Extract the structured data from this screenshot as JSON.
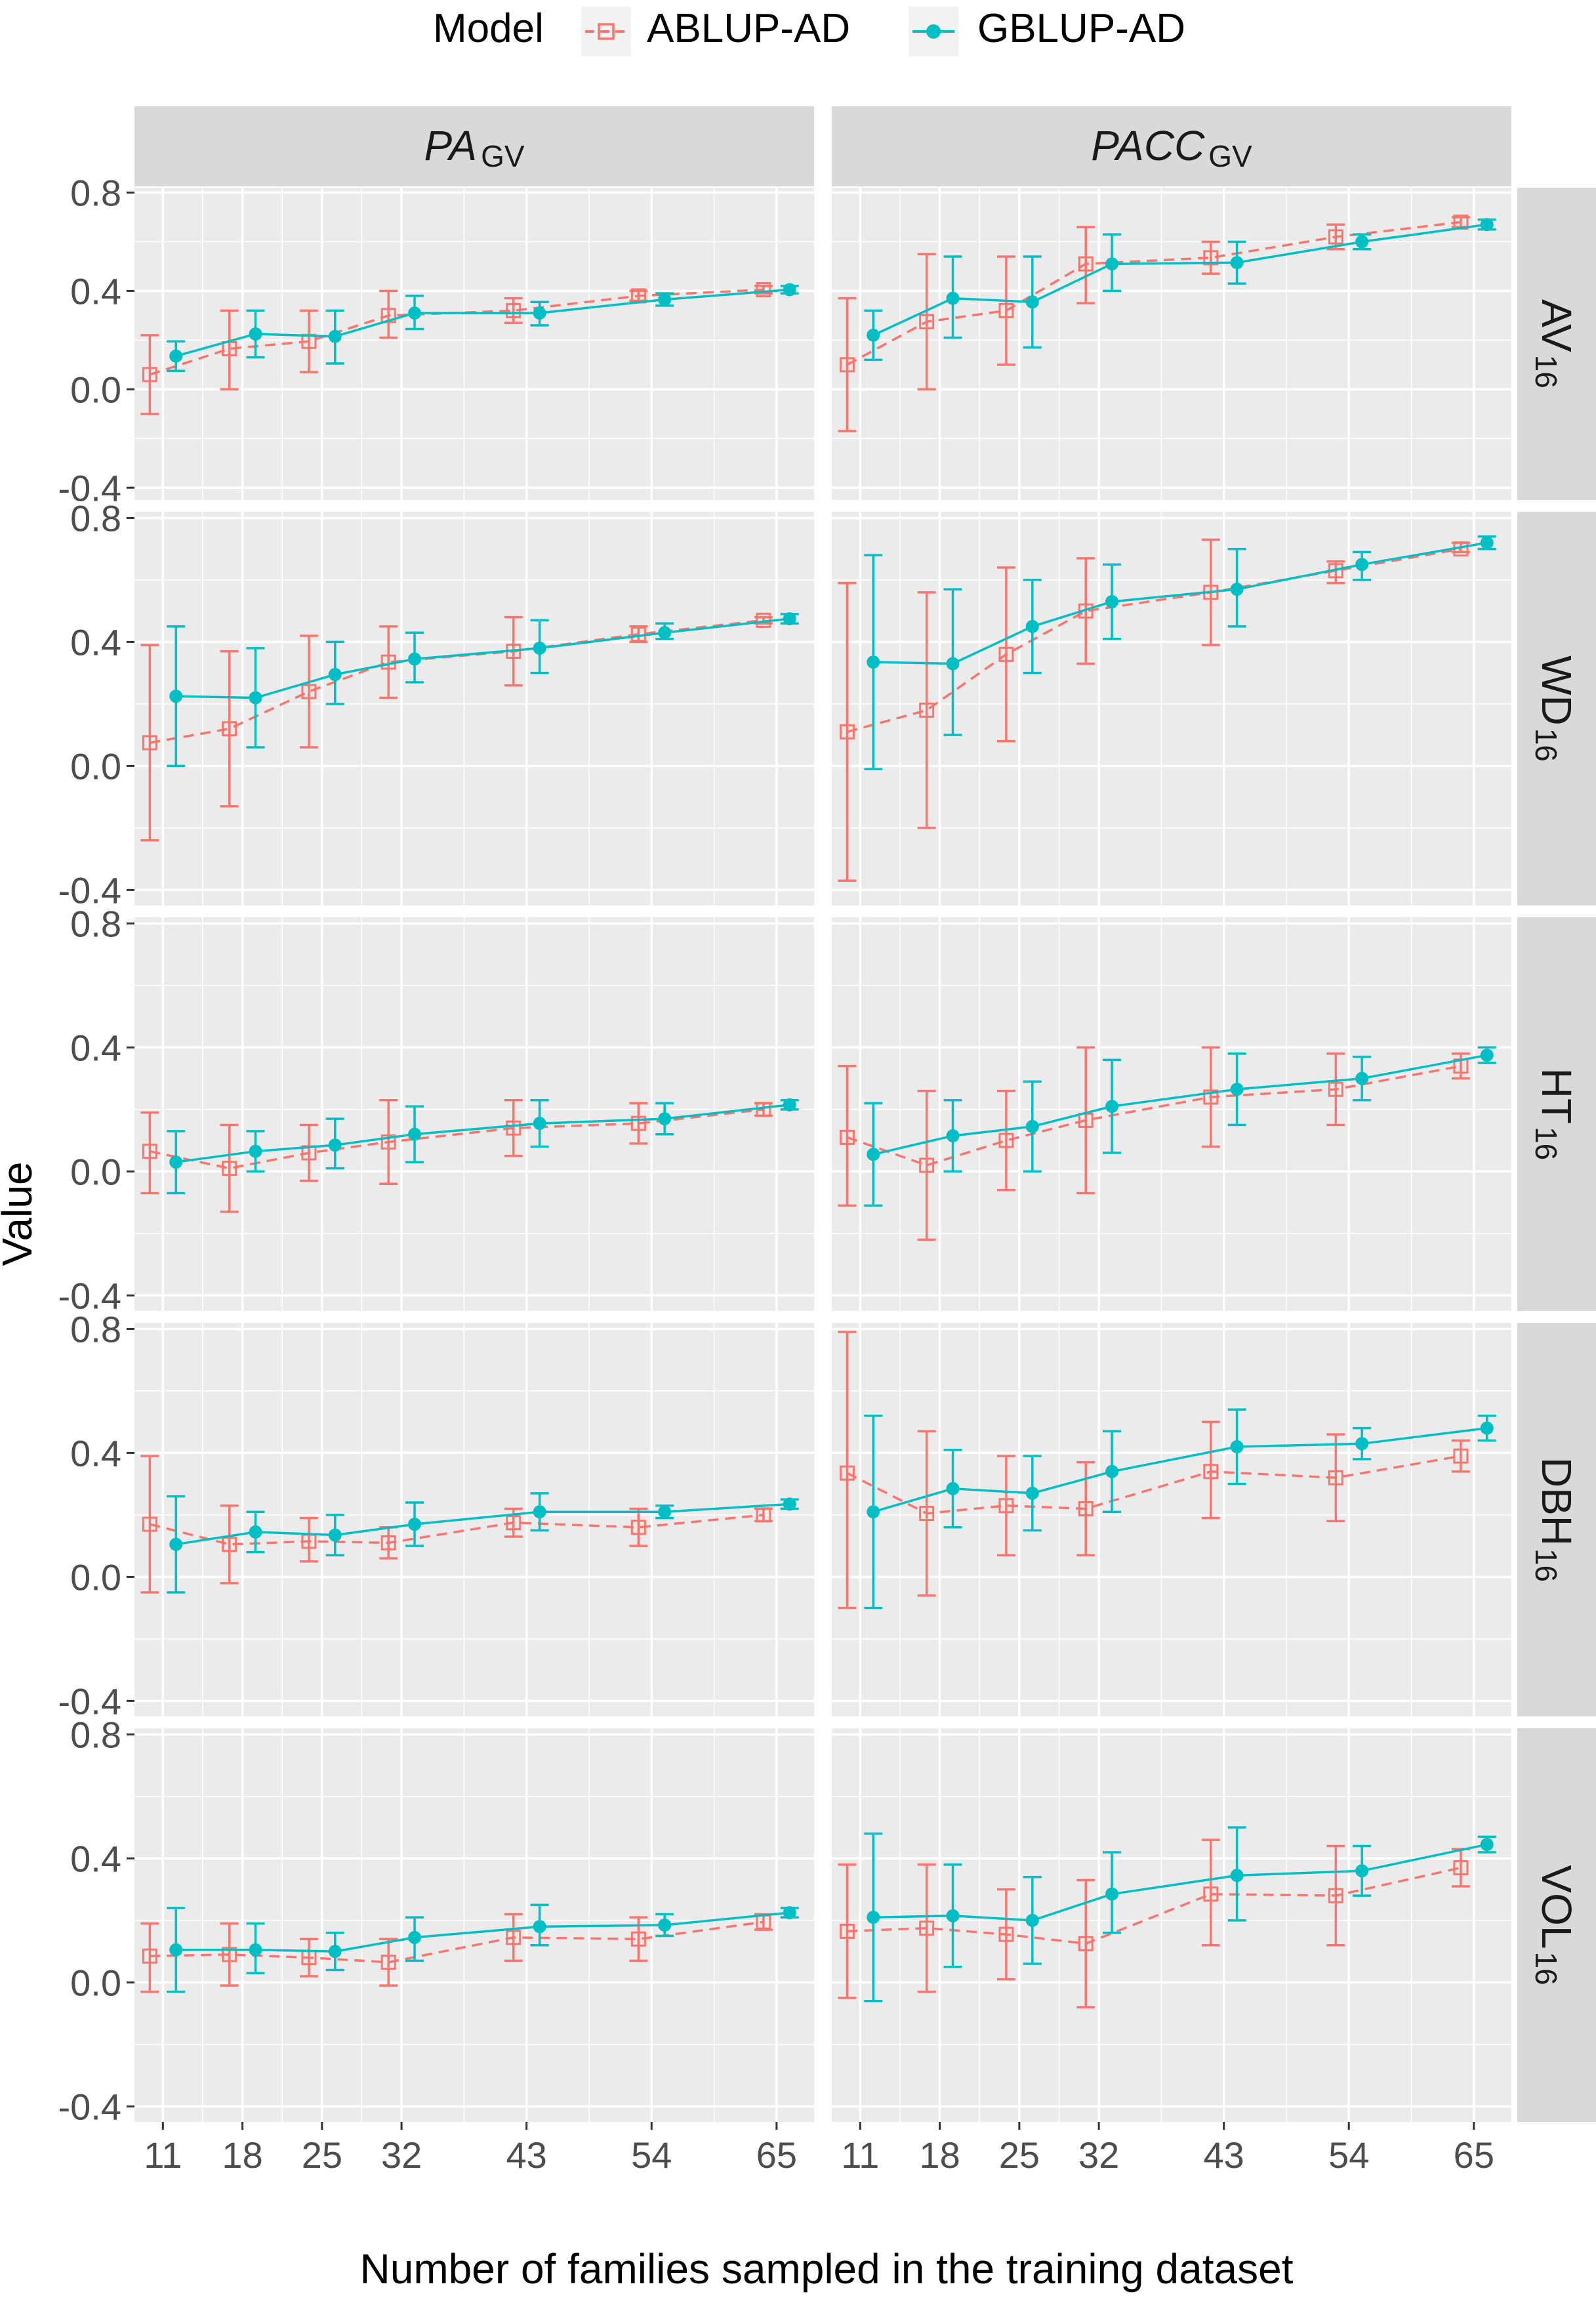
{
  "chart_data": {
    "type": "line",
    "facet_layout": "grid: 5 rows (traits) x 2 columns (metrics)",
    "legend": {
      "title": "Model",
      "position": "top",
      "entries": [
        {
          "name": "ABLUP-AD",
          "color": "#F8766D",
          "marker": "open-square",
          "line": "dashed"
        },
        {
          "name": "GBLUP-AD",
          "color": "#00BFC4",
          "marker": "filled-circle",
          "line": "solid"
        }
      ]
    },
    "xlabel": "Number of families sampled in the training dataset",
    "ylabel": "Value",
    "x": [
      11,
      18,
      25,
      32,
      43,
      54,
      65
    ],
    "x_tick_labels": [
      "11",
      "18",
      "25",
      "32",
      "43",
      "54",
      "65"
    ],
    "ylim": [
      -0.45,
      0.82
    ],
    "y_ticks": [
      -0.4,
      0.0,
      0.4,
      0.8
    ],
    "y_tick_labels": [
      "-0.4",
      "0.0",
      "0.4",
      "0.8"
    ],
    "column_strips": [
      {
        "main": "PA",
        "sub": "GV"
      },
      {
        "main": "PACC",
        "sub": "GV"
      }
    ],
    "row_strips": [
      {
        "main": "AV",
        "sub": "16"
      },
      {
        "main": "WD",
        "sub": "16"
      },
      {
        "main": "HT",
        "sub": "16"
      },
      {
        "main": "DBH",
        "sub": "16"
      },
      {
        "main": "VOL",
        "sub": "16"
      }
    ],
    "panels": [
      [
        {
          "ABLUP-AD": {
            "mean": [
              0.06,
              0.165,
              0.195,
              0.3,
              0.32,
              0.38,
              0.405
            ],
            "low": [
              -0.1,
              0.0,
              0.07,
              0.21,
              0.27,
              0.36,
              0.39
            ],
            "high": [
              0.22,
              0.32,
              0.32,
              0.4,
              0.37,
              0.4,
              0.42
            ]
          },
          "GBLUP-AD": {
            "mean": [
              0.135,
              0.225,
              0.215,
              0.31,
              0.31,
              0.365,
              0.405
            ],
            "low": [
              0.075,
              0.13,
              0.105,
              0.245,
              0.26,
              0.34,
              0.39
            ],
            "high": [
              0.195,
              0.32,
              0.32,
              0.38,
              0.355,
              0.39,
              0.42
            ]
          }
        },
        {
          "ABLUP-AD": {
            "mean": [
              0.1,
              0.275,
              0.32,
              0.51,
              0.535,
              0.62,
              0.68
            ],
            "low": [
              -0.17,
              0.0,
              0.1,
              0.35,
              0.47,
              0.57,
              0.66
            ],
            "high": [
              0.37,
              0.55,
              0.54,
              0.66,
              0.6,
              0.67,
              0.7
            ]
          },
          "GBLUP-AD": {
            "mean": [
              0.22,
              0.37,
              0.355,
              0.51,
              0.515,
              0.6,
              0.67
            ],
            "low": [
              0.12,
              0.21,
              0.17,
              0.4,
              0.43,
              0.57,
              0.65
            ],
            "high": [
              0.32,
              0.54,
              0.54,
              0.63,
              0.6,
              0.63,
              0.69
            ]
          }
        }
      ],
      [
        {
          "ABLUP-AD": {
            "mean": [
              0.075,
              0.12,
              0.24,
              0.335,
              0.37,
              0.425,
              0.47
            ],
            "low": [
              -0.24,
              -0.13,
              0.06,
              0.22,
              0.26,
              0.4,
              0.46
            ],
            "high": [
              0.39,
              0.37,
              0.42,
              0.45,
              0.48,
              0.45,
              0.48
            ]
          },
          "GBLUP-AD": {
            "mean": [
              0.225,
              0.22,
              0.295,
              0.345,
              0.38,
              0.43,
              0.475
            ],
            "low": [
              0.0,
              0.06,
              0.2,
              0.27,
              0.3,
              0.41,
              0.46
            ],
            "high": [
              0.45,
              0.38,
              0.4,
              0.43,
              0.47,
              0.46,
              0.49
            ]
          }
        },
        {
          "ABLUP-AD": {
            "mean": [
              0.11,
              0.18,
              0.36,
              0.5,
              0.56,
              0.63,
              0.7
            ],
            "low": [
              -0.37,
              -0.2,
              0.08,
              0.33,
              0.39,
              0.59,
              0.69
            ],
            "high": [
              0.59,
              0.56,
              0.64,
              0.67,
              0.73,
              0.66,
              0.72
            ]
          },
          "GBLUP-AD": {
            "mean": [
              0.335,
              0.33,
              0.45,
              0.53,
              0.57,
              0.65,
              0.72
            ],
            "low": [
              -0.01,
              0.1,
              0.3,
              0.41,
              0.45,
              0.6,
              0.7
            ],
            "high": [
              0.68,
              0.57,
              0.6,
              0.65,
              0.7,
              0.69,
              0.74
            ]
          }
        }
      ],
      [
        {
          "ABLUP-AD": {
            "mean": [
              0.065,
              0.01,
              0.06,
              0.095,
              0.14,
              0.155,
              0.2
            ],
            "low": [
              -0.07,
              -0.13,
              -0.03,
              -0.04,
              0.05,
              0.09,
              0.18
            ],
            "high": [
              0.19,
              0.15,
              0.15,
              0.23,
              0.23,
              0.22,
              0.22
            ]
          },
          "GBLUP-AD": {
            "mean": [
              0.03,
              0.065,
              0.085,
              0.12,
              0.155,
              0.17,
              0.215
            ],
            "low": [
              -0.07,
              0.0,
              0.01,
              0.03,
              0.08,
              0.12,
              0.2
            ],
            "high": [
              0.13,
              0.13,
              0.17,
              0.21,
              0.23,
              0.22,
              0.23
            ]
          }
        },
        {
          "ABLUP-AD": {
            "mean": [
              0.11,
              0.02,
              0.1,
              0.165,
              0.24,
              0.265,
              0.34
            ],
            "low": [
              -0.11,
              -0.22,
              -0.06,
              -0.07,
              0.08,
              0.15,
              0.3
            ],
            "high": [
              0.34,
              0.26,
              0.26,
              0.4,
              0.4,
              0.38,
              0.38
            ]
          },
          "GBLUP-AD": {
            "mean": [
              0.055,
              0.115,
              0.145,
              0.21,
              0.265,
              0.3,
              0.375
            ],
            "low": [
              -0.11,
              0.0,
              0.0,
              0.06,
              0.15,
              0.23,
              0.35
            ],
            "high": [
              0.22,
              0.23,
              0.29,
              0.36,
              0.38,
              0.37,
              0.4
            ]
          }
        }
      ],
      [
        {
          "ABLUP-AD": {
            "mean": [
              0.17,
              0.105,
              0.115,
              0.11,
              0.175,
              0.16,
              0.2
            ],
            "low": [
              -0.05,
              -0.02,
              0.05,
              0.06,
              0.13,
              0.1,
              0.18
            ],
            "high": [
              0.39,
              0.23,
              0.19,
              0.16,
              0.22,
              0.22,
              0.22
            ]
          },
          "GBLUP-AD": {
            "mean": [
              0.105,
              0.145,
              0.135,
              0.17,
              0.21,
              0.21,
              0.235
            ],
            "low": [
              -0.05,
              0.08,
              0.07,
              0.1,
              0.15,
              0.19,
              0.22
            ],
            "high": [
              0.26,
              0.21,
              0.2,
              0.24,
              0.27,
              0.23,
              0.25
            ]
          }
        },
        {
          "ABLUP-AD": {
            "mean": [
              0.335,
              0.205,
              0.23,
              0.22,
              0.34,
              0.32,
              0.39
            ],
            "low": [
              -0.1,
              -0.06,
              0.07,
              0.07,
              0.19,
              0.18,
              0.34
            ],
            "high": [
              0.79,
              0.47,
              0.39,
              0.37,
              0.5,
              0.46,
              0.44
            ]
          },
          "GBLUP-AD": {
            "mean": [
              0.21,
              0.285,
              0.27,
              0.34,
              0.42,
              0.43,
              0.48
            ],
            "low": [
              -0.1,
              0.16,
              0.15,
              0.21,
              0.3,
              0.38,
              0.44
            ],
            "high": [
              0.52,
              0.41,
              0.39,
              0.47,
              0.54,
              0.48,
              0.52
            ]
          }
        }
      ],
      [
        {
          "ABLUP-AD": {
            "mean": [
              0.085,
              0.09,
              0.08,
              0.065,
              0.145,
              0.14,
              0.195
            ],
            "low": [
              -0.03,
              -0.01,
              0.02,
              -0.01,
              0.07,
              0.07,
              0.17
            ],
            "high": [
              0.19,
              0.19,
              0.14,
              0.14,
              0.22,
              0.21,
              0.22
            ]
          },
          "GBLUP-AD": {
            "mean": [
              0.105,
              0.105,
              0.1,
              0.145,
              0.18,
              0.185,
              0.225
            ],
            "low": [
              -0.03,
              0.03,
              0.04,
              0.07,
              0.12,
              0.15,
              0.21
            ],
            "high": [
              0.24,
              0.19,
              0.16,
              0.21,
              0.25,
              0.22,
              0.24
            ]
          }
        },
        {
          "ABLUP-AD": {
            "mean": [
              0.165,
              0.175,
              0.155,
              0.125,
              0.285,
              0.28,
              0.37
            ],
            "low": [
              -0.05,
              -0.03,
              0.01,
              -0.08,
              0.12,
              0.12,
              0.31
            ],
            "high": [
              0.38,
              0.38,
              0.3,
              0.33,
              0.46,
              0.44,
              0.43
            ]
          },
          "GBLUP-AD": {
            "mean": [
              0.21,
              0.215,
              0.2,
              0.285,
              0.345,
              0.36,
              0.445
            ],
            "low": [
              -0.06,
              0.05,
              0.06,
              0.16,
              0.2,
              0.28,
              0.42
            ],
            "high": [
              0.48,
              0.38,
              0.34,
              0.42,
              0.5,
              0.44,
              0.47
            ]
          }
        }
      ]
    ]
  }
}
